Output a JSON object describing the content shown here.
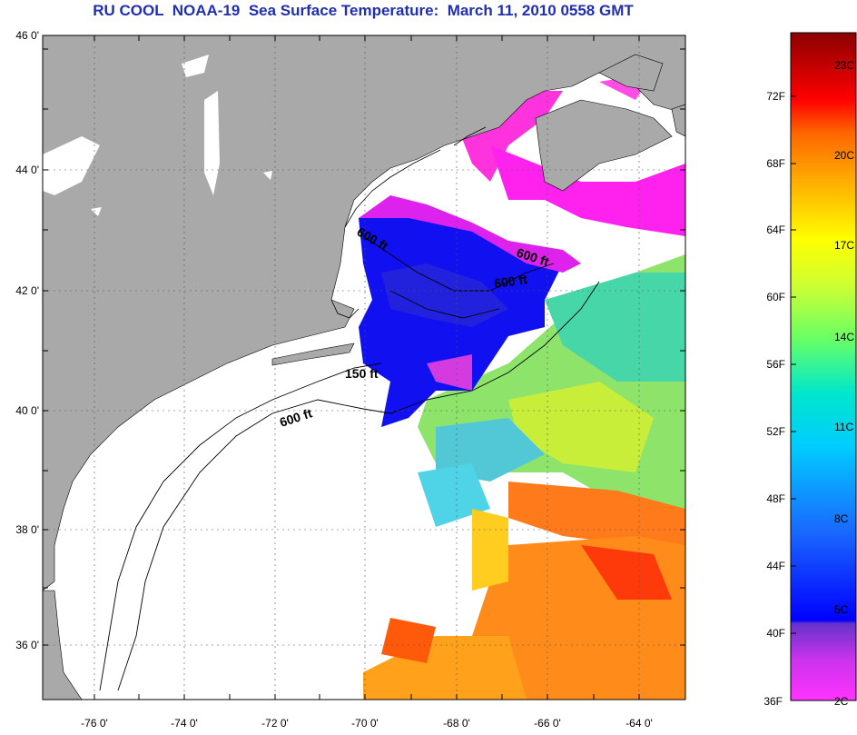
{
  "title": "RU COOL  NOAA-19  Sea Surface Temperature:  March 11, 2010 0558 GMT",
  "lat_labels": [
    "46 0'",
    "44 0'",
    "42 0'",
    "40 0'",
    "38 0'",
    "36 0'"
  ],
  "lon_labels": [
    "-76 0'",
    "-74 0'",
    "-72 0'",
    "-70 0'",
    "-68 0'",
    "-66 0'",
    "-64 0'"
  ],
  "depth_labels": [
    "600 ft",
    "600 ft",
    "600 ft",
    "150 ft",
    "600 ft"
  ],
  "colorbar": {
    "fahrenheit": [
      "72F",
      "68F",
      "64F",
      "60F",
      "56F",
      "52F",
      "48F",
      "44F",
      "40F",
      "36F"
    ],
    "celsius": [
      "23C",
      "20C",
      "17C",
      "14C",
      "11C",
      "8C",
      "5C",
      "2C"
    ]
  },
  "colors": {
    "land": "#a9a9a9",
    "title": "#1f2fb0"
  }
}
